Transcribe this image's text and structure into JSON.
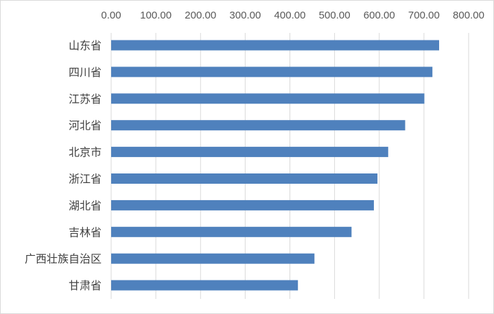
{
  "chart_data": {
    "type": "bar",
    "orientation": "horizontal",
    "x_axis_position": "top",
    "categories": [
      "山东省",
      "四川省",
      "江苏省",
      "河北省",
      "北京市",
      "浙江省",
      "湖北省",
      "吉林省",
      "广西壮族自治区",
      "甘肃省"
    ],
    "values": [
      734,
      719,
      701,
      658,
      620,
      596,
      588,
      538,
      455,
      418
    ],
    "xlim": [
      0,
      800
    ],
    "x_ticks": [
      "0.00",
      "100.00",
      "200.00",
      "300.00",
      "400.00",
      "500.00",
      "600.00",
      "700.00",
      "800.00"
    ],
    "grid": true,
    "legend": "none",
    "bar_color": "#4f81bd",
    "grid_color": "#d9d9d9"
  }
}
